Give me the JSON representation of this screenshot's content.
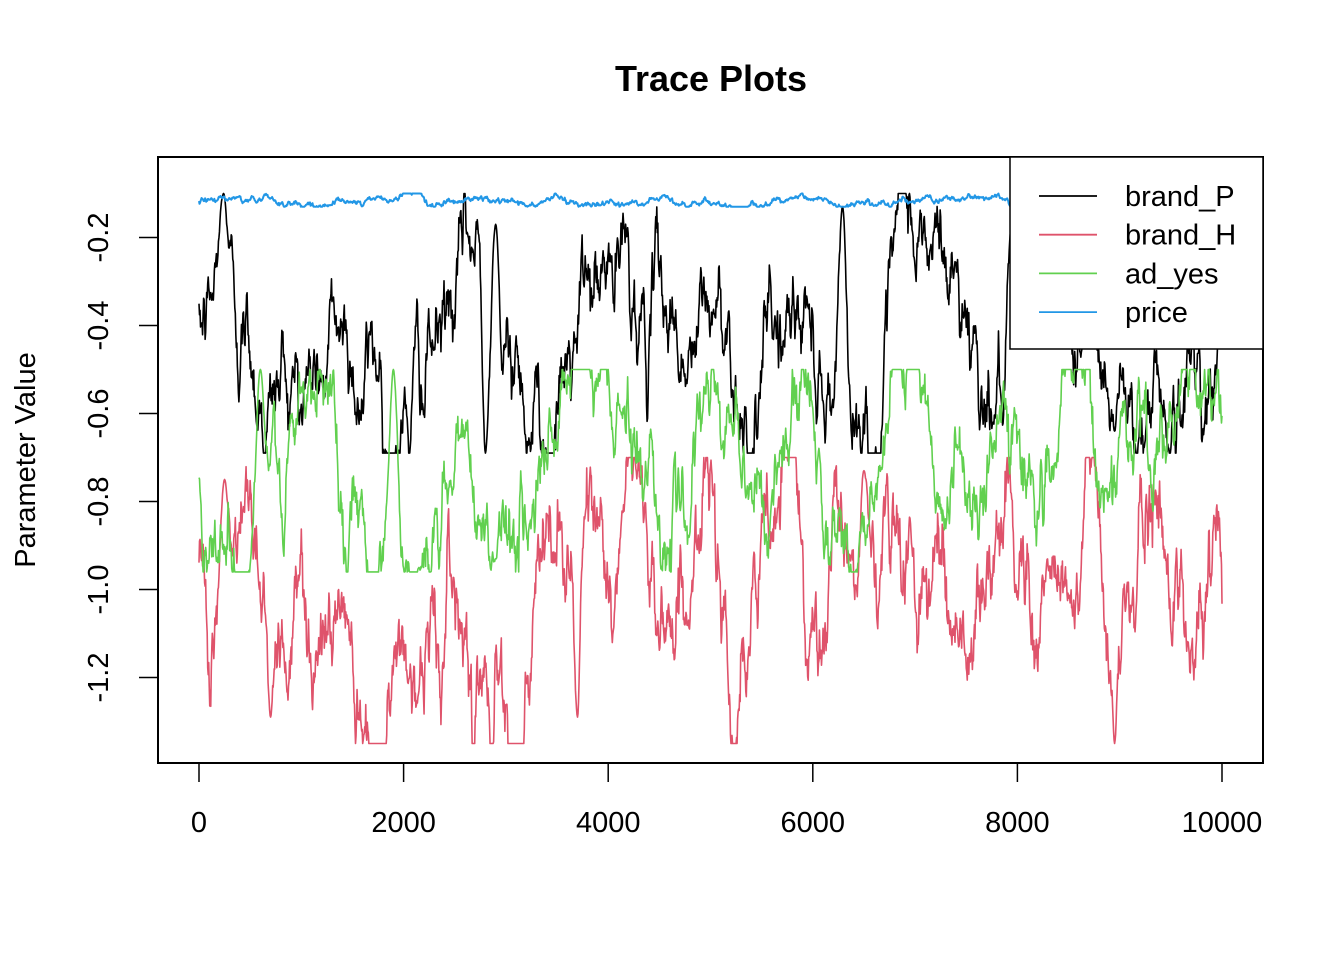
{
  "chart_data": {
    "type": "line",
    "title": "Trace Plots",
    "xlabel": "",
    "ylabel": "Parameter Value",
    "xlim": [
      0,
      10000
    ],
    "ylim": [
      -1.35,
      -0.07
    ],
    "x_ticks": [
      "0",
      "2000",
      "4000",
      "6000",
      "8000",
      "10000"
    ],
    "y_ticks": [
      "-0.2",
      "-0.4",
      "-0.6",
      "-0.8",
      "-1.0",
      "-1.2"
    ],
    "grid": false,
    "legend_position": "top-right",
    "n_iterations": 10000,
    "series": [
      {
        "name": "brand_P",
        "color": "#000000",
        "mean": -0.44,
        "sd": 0.085,
        "min": -0.69,
        "max": -0.1,
        "peaks": [
          [
            240,
            -0.1
          ],
          [
            2900,
            -0.17
          ],
          [
            6290,
            -0.13
          ]
        ],
        "troughs": [
          [
            2800,
            -0.69
          ],
          [
            8950,
            -0.64
          ]
        ]
      },
      {
        "name": "brand_H",
        "color": "#DF536B",
        "mean": -0.93,
        "sd": 0.095,
        "min": -1.35,
        "max": -0.7,
        "peaks": [
          [
            250,
            -0.75
          ],
          [
            6500,
            -0.73
          ]
        ],
        "troughs": [
          [
            700,
            -1.29
          ],
          [
            3700,
            -1.29
          ],
          [
            8950,
            -1.35
          ]
        ]
      },
      {
        "name": "ad_yes",
        "color": "#61D04F",
        "mean": -0.74,
        "sd": 0.075,
        "min": -0.96,
        "max": -0.5,
        "peaks": [
          [
            600,
            -0.5
          ],
          [
            1900,
            -0.5
          ]
        ],
        "troughs": [
          [
            2150,
            -0.95
          ],
          [
            2900,
            -0.93
          ]
        ]
      },
      {
        "name": "price",
        "color": "#2297E6",
        "mean": -0.115,
        "sd": 0.006,
        "min": -0.13,
        "max": -0.1,
        "peaks": [],
        "troughs": []
      }
    ]
  }
}
